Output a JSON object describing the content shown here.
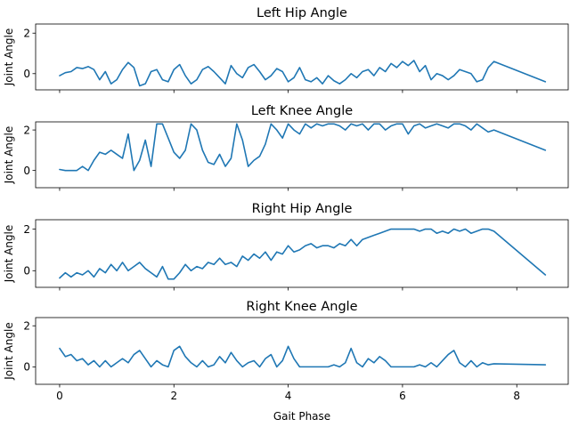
{
  "chart_data": [
    {
      "type": "line",
      "title": "Left Hip Angle",
      "ylabel": "Joint Angle",
      "xlabel": "",
      "xlim": [
        -0.42,
        8.9
      ],
      "ylim": [
        -0.8,
        2.45
      ],
      "xticks": [
        0,
        2,
        4,
        6,
        8
      ],
      "yticks": [
        0,
        2
      ],
      "show_xticklabels": false,
      "grid": false,
      "series": [
        {
          "color": "#1f77b4",
          "x": [
            0,
            0.1,
            0.2,
            0.3,
            0.4,
            0.5,
            0.6,
            0.7,
            0.8,
            0.9,
            1.0,
            1.1,
            1.2,
            1.3,
            1.4,
            1.5,
            1.6,
            1.7,
            1.8,
            1.9,
            2.0,
            2.1,
            2.2,
            2.3,
            2.4,
            2.5,
            2.6,
            2.7,
            2.8,
            2.9,
            3.0,
            3.1,
            3.2,
            3.3,
            3.4,
            3.5,
            3.6,
            3.7,
            3.8,
            3.9,
            4.0,
            4.1,
            4.2,
            4.3,
            4.4,
            4.5,
            4.6,
            4.7,
            4.8,
            4.9,
            5.0,
            5.1,
            5.2,
            5.3,
            5.4,
            5.5,
            5.6,
            5.7,
            5.8,
            5.9,
            6.0,
            6.1,
            6.2,
            6.3,
            6.4,
            6.5,
            6.6,
            6.7,
            6.8,
            6.9,
            7.0,
            7.1,
            7.2,
            7.3,
            7.4,
            7.5,
            7.6,
            8.5
          ],
          "y": [
            -0.1,
            0.05,
            0.1,
            0.3,
            0.25,
            0.35,
            0.2,
            -0.3,
            0.1,
            -0.5,
            -0.3,
            0.2,
            0.55,
            0.3,
            -0.6,
            -0.5,
            0.1,
            0.2,
            -0.3,
            -0.4,
            0.2,
            0.45,
            -0.1,
            -0.5,
            -0.3,
            0.2,
            0.35,
            0.1,
            -0.2,
            -0.5,
            0.4,
            0.0,
            -0.2,
            0.3,
            0.45,
            0.1,
            -0.3,
            -0.1,
            0.25,
            0.1,
            -0.4,
            -0.2,
            0.3,
            -0.3,
            -0.4,
            -0.2,
            -0.5,
            -0.1,
            -0.35,
            -0.5,
            -0.3,
            0.0,
            -0.2,
            0.1,
            0.2,
            -0.1,
            0.3,
            0.1,
            0.5,
            0.3,
            0.6,
            0.4,
            0.65,
            0.1,
            0.4,
            -0.3,
            0.0,
            -0.1,
            -0.3,
            -0.1,
            0.2,
            0.1,
            0.0,
            -0.4,
            -0.3,
            0.3,
            0.6,
            -0.4
          ]
        }
      ]
    },
    {
      "type": "line",
      "title": "Left Knee Angle",
      "ylabel": "Joint Angle",
      "xlabel": "",
      "xlim": [
        -0.42,
        8.9
      ],
      "ylim": [
        -0.85,
        2.4
      ],
      "xticks": [
        0,
        2,
        4,
        6,
        8
      ],
      "yticks": [
        0,
        2
      ],
      "show_xticklabels": false,
      "grid": false,
      "series": [
        {
          "color": "#1f77b4",
          "x": [
            0,
            0.1,
            0.2,
            0.3,
            0.4,
            0.5,
            0.6,
            0.7,
            0.8,
            0.9,
            1.0,
            1.1,
            1.2,
            1.3,
            1.4,
            1.5,
            1.6,
            1.7,
            1.8,
            1.9,
            2.0,
            2.1,
            2.2,
            2.3,
            2.4,
            2.5,
            2.6,
            2.7,
            2.8,
            2.9,
            3.0,
            3.1,
            3.2,
            3.3,
            3.4,
            3.5,
            3.6,
            3.7,
            3.8,
            3.9,
            4.0,
            4.1,
            4.2,
            4.3,
            4.4,
            4.5,
            4.6,
            4.7,
            4.8,
            4.9,
            5.0,
            5.1,
            5.2,
            5.3,
            5.4,
            5.5,
            5.6,
            5.7,
            5.8,
            5.9,
            6.0,
            6.1,
            6.2,
            6.3,
            6.4,
            6.5,
            6.6,
            6.7,
            6.8,
            6.9,
            7.0,
            7.1,
            7.2,
            7.3,
            7.4,
            7.5,
            7.6,
            8.5
          ],
          "y": [
            0.05,
            0.0,
            0.0,
            0.0,
            0.2,
            0.0,
            0.5,
            0.9,
            0.8,
            1.0,
            0.8,
            0.6,
            1.8,
            0.0,
            0.5,
            1.5,
            0.2,
            2.3,
            2.3,
            1.6,
            0.9,
            0.6,
            1.0,
            2.3,
            2.0,
            1.0,
            0.4,
            0.3,
            0.8,
            0.2,
            0.6,
            2.3,
            1.5,
            0.2,
            0.5,
            0.7,
            1.3,
            2.3,
            2.0,
            1.6,
            2.3,
            2.0,
            1.8,
            2.3,
            2.1,
            2.3,
            2.2,
            2.3,
            2.3,
            2.2,
            2.0,
            2.3,
            2.2,
            2.3,
            2.0,
            2.3,
            2.3,
            2.0,
            2.2,
            2.3,
            2.3,
            1.8,
            2.2,
            2.3,
            2.1,
            2.2,
            2.3,
            2.2,
            2.1,
            2.3,
            2.3,
            2.2,
            2.0,
            2.3,
            2.1,
            1.9,
            2.0,
            1.0
          ]
        }
      ]
    },
    {
      "type": "line",
      "title": "Right Hip Angle",
      "ylabel": "Joint Angle",
      "xlabel": "",
      "xlim": [
        -0.42,
        8.9
      ],
      "ylim": [
        -0.8,
        2.45
      ],
      "xticks": [
        0,
        2,
        4,
        6,
        8
      ],
      "yticks": [
        0,
        2
      ],
      "show_xticklabels": false,
      "grid": false,
      "series": [
        {
          "color": "#1f77b4",
          "x": [
            0,
            0.1,
            0.2,
            0.3,
            0.4,
            0.5,
            0.6,
            0.7,
            0.8,
            0.9,
            1.0,
            1.1,
            1.2,
            1.3,
            1.4,
            1.5,
            1.6,
            1.7,
            1.8,
            1.9,
            2.0,
            2.1,
            2.2,
            2.3,
            2.4,
            2.5,
            2.6,
            2.7,
            2.8,
            2.9,
            3.0,
            3.1,
            3.2,
            3.3,
            3.4,
            3.5,
            3.6,
            3.7,
            3.8,
            3.9,
            4.0,
            4.1,
            4.2,
            4.3,
            4.4,
            4.5,
            4.6,
            4.7,
            4.8,
            4.9,
            5.0,
            5.1,
            5.2,
            5.3,
            5.4,
            5.5,
            5.6,
            5.7,
            5.8,
            5.9,
            6.0,
            6.1,
            6.2,
            6.3,
            6.4,
            6.5,
            6.6,
            6.7,
            6.8,
            6.9,
            7.0,
            7.1,
            7.2,
            7.3,
            7.4,
            7.5,
            7.6,
            8.5
          ],
          "y": [
            -0.35,
            -0.1,
            -0.3,
            -0.1,
            -0.2,
            0.0,
            -0.3,
            0.1,
            -0.1,
            0.3,
            0.0,
            0.4,
            0.0,
            0.2,
            0.4,
            0.1,
            -0.1,
            -0.3,
            0.2,
            -0.4,
            -0.4,
            -0.1,
            0.3,
            0.0,
            0.2,
            0.1,
            0.4,
            0.3,
            0.6,
            0.3,
            0.4,
            0.2,
            0.7,
            0.5,
            0.8,
            0.6,
            0.9,
            0.5,
            0.9,
            0.8,
            1.2,
            0.9,
            1.0,
            1.2,
            1.3,
            1.1,
            1.2,
            1.2,
            1.1,
            1.3,
            1.2,
            1.5,
            1.2,
            1.5,
            1.6,
            1.7,
            1.8,
            1.9,
            2.0,
            2.0,
            2.0,
            2.0,
            2.0,
            1.9,
            2.0,
            2.0,
            1.8,
            1.9,
            1.8,
            2.0,
            1.9,
            2.0,
            1.8,
            1.9,
            2.0,
            2.0,
            1.9,
            -0.2
          ]
        }
      ]
    },
    {
      "type": "line",
      "title": "Right Knee Angle",
      "ylabel": "Joint Angle",
      "xlabel": "Gait Phase",
      "xlim": [
        -0.42,
        8.9
      ],
      "ylim": [
        -0.85,
        2.4
      ],
      "xticks": [
        0,
        2,
        4,
        6,
        8
      ],
      "yticks": [
        0,
        2
      ],
      "show_xticklabels": true,
      "grid": false,
      "series": [
        {
          "color": "#1f77b4",
          "x": [
            0,
            0.1,
            0.2,
            0.3,
            0.4,
            0.5,
            0.6,
            0.7,
            0.8,
            0.9,
            1.0,
            1.1,
            1.2,
            1.3,
            1.4,
            1.5,
            1.6,
            1.7,
            1.8,
            1.9,
            2.0,
            2.1,
            2.2,
            2.3,
            2.4,
            2.5,
            2.6,
            2.7,
            2.8,
            2.9,
            3.0,
            3.1,
            3.2,
            3.3,
            3.4,
            3.5,
            3.6,
            3.7,
            3.8,
            3.9,
            4.0,
            4.1,
            4.2,
            4.3,
            4.4,
            4.5,
            4.6,
            4.7,
            4.8,
            4.9,
            5.0,
            5.1,
            5.2,
            5.3,
            5.4,
            5.5,
            5.6,
            5.7,
            5.8,
            5.9,
            6.0,
            6.1,
            6.2,
            6.3,
            6.4,
            6.5,
            6.6,
            6.7,
            6.8,
            6.9,
            7.0,
            7.1,
            7.2,
            7.3,
            7.4,
            7.5,
            7.6,
            8.5
          ],
          "y": [
            0.9,
            0.5,
            0.6,
            0.3,
            0.4,
            0.1,
            0.3,
            0.0,
            0.3,
            0.0,
            0.2,
            0.4,
            0.2,
            0.6,
            0.8,
            0.4,
            0.0,
            0.3,
            0.1,
            0.0,
            0.8,
            1.0,
            0.5,
            0.2,
            0.0,
            0.3,
            0.0,
            0.1,
            0.5,
            0.2,
            0.7,
            0.3,
            0.0,
            0.2,
            0.3,
            0.0,
            0.4,
            0.6,
            0.0,
            0.3,
            1.0,
            0.4,
            0.0,
            0.0,
            0.0,
            0.0,
            0.0,
            0.0,
            0.1,
            0.0,
            0.2,
            0.9,
            0.2,
            0.0,
            0.4,
            0.2,
            0.5,
            0.3,
            0.0,
            0.0,
            0.0,
            0.0,
            0.0,
            0.1,
            0.0,
            0.2,
            0.0,
            0.3,
            0.6,
            0.8,
            0.2,
            0.0,
            0.3,
            0.0,
            0.2,
            0.1,
            0.15,
            0.1
          ]
        }
      ]
    }
  ]
}
